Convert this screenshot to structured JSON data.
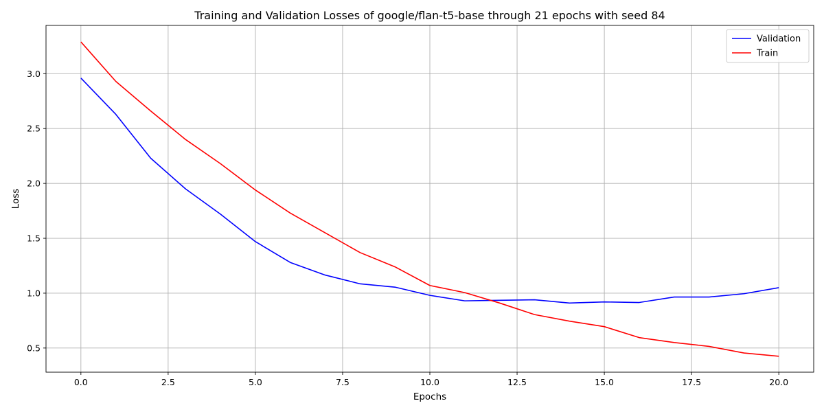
{
  "chart_data": {
    "type": "line",
    "title": "Training and Validation Losses of google/flan-t5-base through 21 epochs with seed 84",
    "xlabel": "Epochs",
    "ylabel": "Loss",
    "x": [
      0,
      1,
      2,
      3,
      4,
      5,
      6,
      7,
      8,
      9,
      10,
      11,
      12,
      13,
      14,
      15,
      16,
      17,
      18,
      19,
      20
    ],
    "xlim": [
      -1,
      21
    ],
    "ylim": [
      0.28,
      3.44
    ],
    "xticks": [
      0.0,
      2.5,
      5.0,
      7.5,
      10.0,
      12.5,
      15.0,
      17.5,
      20.0
    ],
    "xtick_labels": [
      "0.0",
      "2.5",
      "5.0",
      "7.5",
      "10.0",
      "12.5",
      "15.0",
      "17.5",
      "20.0"
    ],
    "yticks": [
      0.5,
      1.0,
      1.5,
      2.0,
      2.5,
      3.0
    ],
    "ytick_labels": [
      "0.5",
      "1.0",
      "1.5",
      "2.0",
      "2.5",
      "3.0"
    ],
    "grid": true,
    "legend_position": "top-right",
    "series": [
      {
        "name": "Validation",
        "color": "#0000ff",
        "values": [
          2.96,
          2.63,
          2.23,
          1.95,
          1.72,
          1.47,
          1.28,
          1.165,
          1.085,
          1.055,
          0.98,
          0.93,
          0.935,
          0.94,
          0.91,
          0.92,
          0.915,
          0.965,
          0.965,
          0.995,
          1.05
        ]
      },
      {
        "name": "Train",
        "color": "#ff0000",
        "values": [
          3.29,
          2.93,
          2.66,
          2.4,
          2.18,
          1.94,
          1.73,
          1.55,
          1.37,
          1.24,
          1.07,
          1.005,
          0.91,
          0.805,
          0.745,
          0.695,
          0.595,
          0.55,
          0.515,
          0.455,
          0.425
        ]
      }
    ]
  }
}
